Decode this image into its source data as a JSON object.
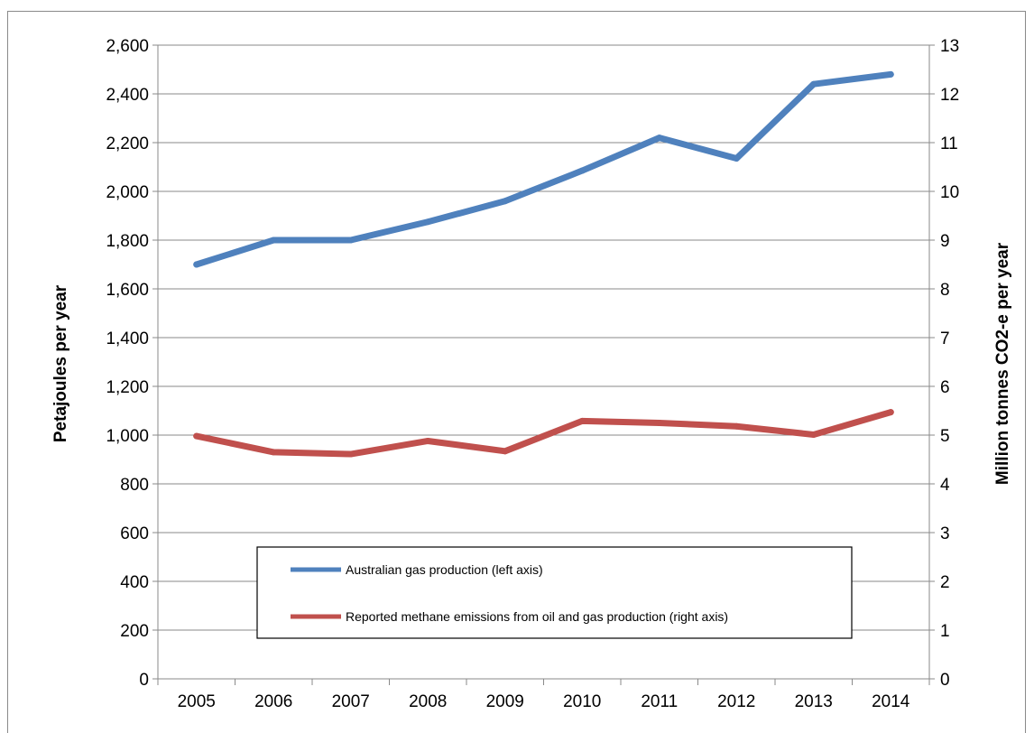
{
  "chart_data": {
    "type": "line",
    "title": "",
    "x": [
      "2005",
      "2006",
      "2007",
      "2008",
      "2009",
      "2010",
      "2011",
      "2012",
      "2013",
      "2014"
    ],
    "y_left": {
      "label": "Petajoules per year",
      "min": 0,
      "max": 2600,
      "step": 200,
      "tick_labels": [
        "0",
        "200",
        "400",
        "600",
        "800",
        "1,000",
        "1,200",
        "1,400",
        "1,600",
        "1,800",
        "2,000",
        "2,200",
        "2,400",
        "2,600"
      ]
    },
    "y_right": {
      "label": "Million tonnes CO2-e per year",
      "min": 0,
      "max": 13,
      "step": 1,
      "tick_labels": [
        "0",
        "1",
        "2",
        "3",
        "4",
        "5",
        "6",
        "7",
        "8",
        "9",
        "10",
        "11",
        "12",
        "13"
      ]
    },
    "grid": true,
    "legend_position": "lower-center",
    "series": [
      {
        "name": "Australian gas production (left axis)",
        "axis": "left",
        "color": "#4f81bd",
        "values": [
          1700,
          1800,
          1800,
          1875,
          1960,
          2085,
          2220,
          2135,
          2440,
          2480
        ]
      },
      {
        "name": "Reported methane emissions from oil and gas production (right axis)",
        "axis": "right",
        "color": "#c0504d",
        "values": [
          4.98,
          4.65,
          4.61,
          4.88,
          4.67,
          5.29,
          5.25,
          5.18,
          5.01,
          5.47
        ]
      }
    ]
  }
}
